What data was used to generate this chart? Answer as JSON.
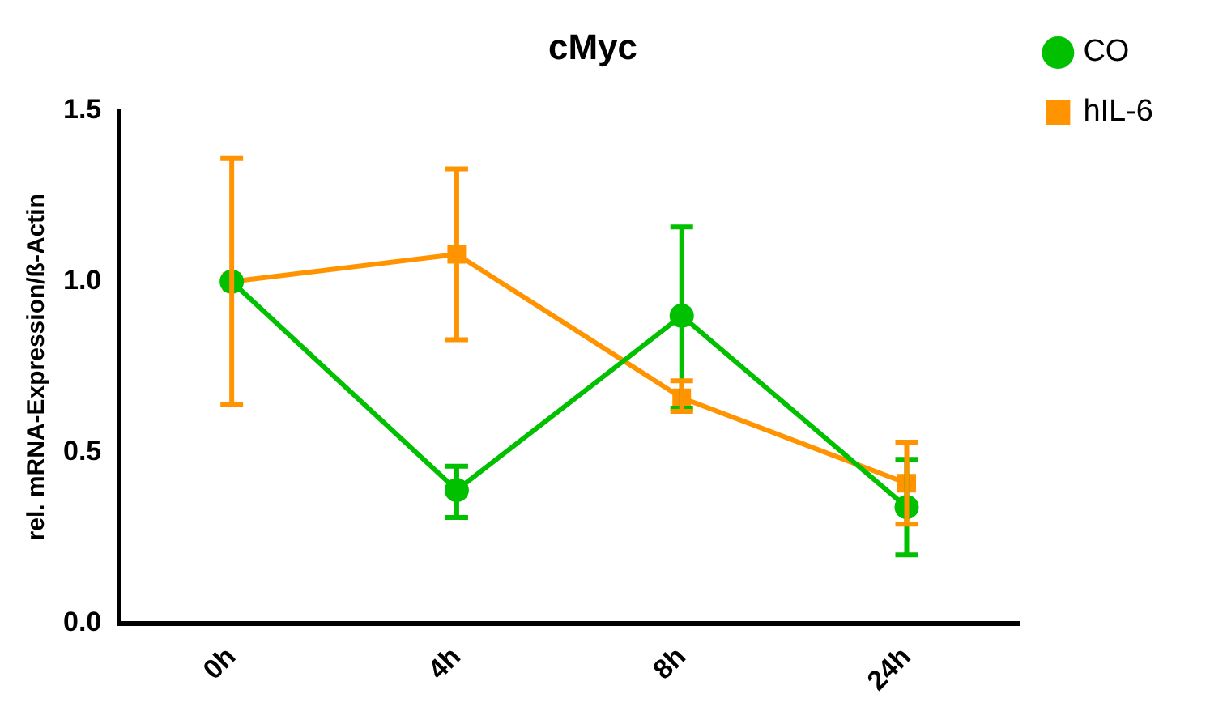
{
  "chart_data": {
    "type": "line",
    "title": "cMyc",
    "ylabel": "rel. mRNA-Expression/ß-Actin",
    "categories": [
      "0h",
      "4h",
      "8h",
      "24h"
    ],
    "series": [
      {
        "name": "CO",
        "color": "#00c000",
        "marker": "circle",
        "values": [
          1.0,
          0.39,
          0.9,
          0.34
        ],
        "errors": [
          null,
          [
            0.31,
            0.46
          ],
          [
            0.63,
            1.16
          ],
          [
            0.2,
            0.48
          ]
        ]
      },
      {
        "name": "hIL-6",
        "color": "#ff9400",
        "marker": "square",
        "values": [
          1.0,
          1.08,
          0.66,
          0.41
        ],
        "errors": [
          [
            0.64,
            1.36
          ],
          [
            0.83,
            1.33
          ],
          [
            0.62,
            0.71
          ],
          [
            0.29,
            0.53
          ]
        ]
      }
    ],
    "ylim": [
      0,
      1.5
    ],
    "yticks": [
      {
        "value": 0,
        "label": "0.0"
      },
      {
        "value": 0.5,
        "label": "0.5"
      },
      {
        "value": 1,
        "label": "1.0"
      },
      {
        "value": 1.5,
        "label": "1.5"
      }
    ],
    "grid": false,
    "legend": "top right",
    "line_style": "solid"
  }
}
